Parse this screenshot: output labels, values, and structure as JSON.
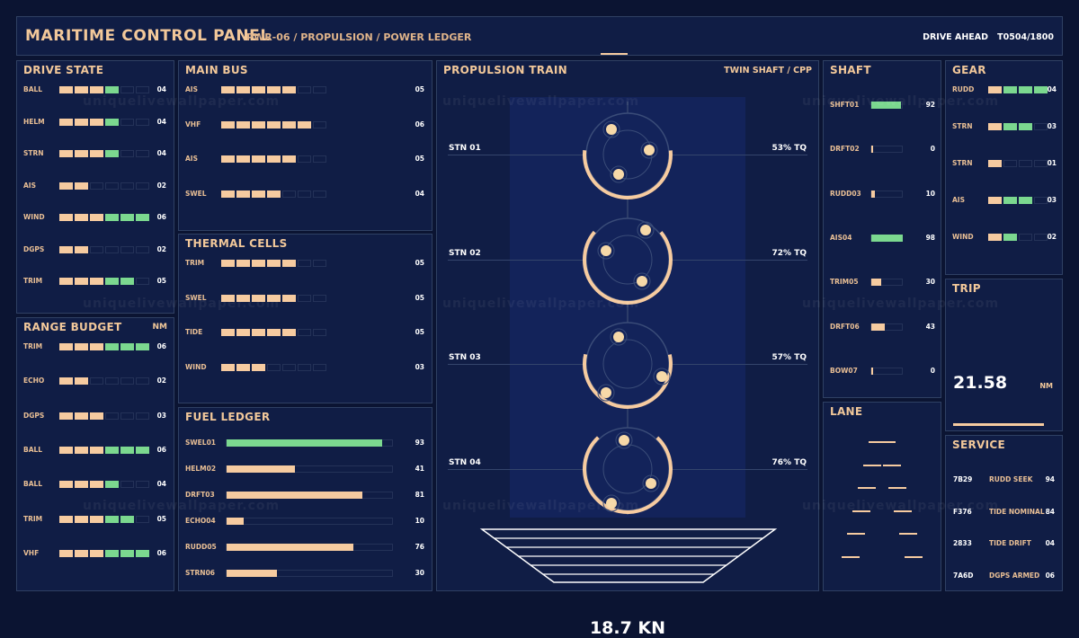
{
  "header": {
    "title": "MARITIME CONTROL PANEL",
    "subtitle": "PWR-06 / PROPULSION / POWER LEDGER",
    "status": "DRIVE AHEAD",
    "tick": "T0504/1800"
  },
  "watermark": "uniquelivewallpaper.com",
  "colors": {
    "background": "#0b1432",
    "panel": "#101d45",
    "amber": "#f6cba0",
    "green": "#7bd88f",
    "border": "#2f4063"
  },
  "drive_state": {
    "title": "DRIVE STATE",
    "rows": [
      {
        "label": "BALL",
        "value": "04",
        "level": 4,
        "green": 1
      },
      {
        "label": "HELM",
        "value": "04",
        "level": 4,
        "green": 1
      },
      {
        "label": "STRN",
        "value": "04",
        "level": 4,
        "green": 1
      },
      {
        "label": "AIS",
        "value": "02",
        "level": 2,
        "green": 0
      },
      {
        "label": "WIND",
        "value": "06",
        "level": 6,
        "green": 3
      },
      {
        "label": "DGPS",
        "value": "02",
        "level": 2,
        "green": 0
      },
      {
        "label": "TRIM",
        "value": "05",
        "level": 5,
        "green": 2
      }
    ]
  },
  "range_budget": {
    "title": "RANGE BUDGET",
    "unit": "NM",
    "rows": [
      {
        "label": "TRIM",
        "value": "06",
        "level": 6,
        "green": 3
      },
      {
        "label": "ECHO",
        "value": "02",
        "level": 2,
        "green": 0
      },
      {
        "label": "DGPS",
        "value": "03",
        "level": 3,
        "green": 0
      },
      {
        "label": "BALL",
        "value": "06",
        "level": 6,
        "green": 3
      },
      {
        "label": "BALL",
        "value": "04",
        "level": 4,
        "green": 1
      },
      {
        "label": "TRIM",
        "value": "05",
        "level": 5,
        "green": 2
      },
      {
        "label": "VHF",
        "value": "06",
        "level": 6,
        "green": 3
      }
    ]
  },
  "main_bus": {
    "title": "MAIN BUS",
    "rows": [
      {
        "label": "AIS",
        "value": "05",
        "level": 5
      },
      {
        "label": "VHF",
        "value": "06",
        "level": 6
      },
      {
        "label": "AIS",
        "value": "05",
        "level": 5
      },
      {
        "label": "SWEL",
        "value": "04",
        "level": 4
      }
    ]
  },
  "thermal_cells": {
    "title": "THERMAL CELLS",
    "rows": [
      {
        "label": "TRIM",
        "value": "05",
        "level": 5
      },
      {
        "label": "SWEL",
        "value": "05",
        "level": 5
      },
      {
        "label": "TIDE",
        "value": "05",
        "level": 5
      },
      {
        "label": "WIND",
        "value": "03",
        "level": 3
      }
    ]
  },
  "fuel_ledger": {
    "title": "FUEL LEDGER",
    "rows": [
      {
        "label": "SWEL01",
        "value": "93",
        "pct": 0.93,
        "color": "green"
      },
      {
        "label": "HELM02",
        "value": "41",
        "pct": 0.41,
        "color": "amber"
      },
      {
        "label": "DRFT03",
        "value": "81",
        "pct": 0.81,
        "color": "amber"
      },
      {
        "label": "ECHO04",
        "value": "10",
        "pct": 0.1,
        "color": "amber"
      },
      {
        "label": "RUDD05",
        "value": "76",
        "pct": 0.76,
        "color": "amber"
      },
      {
        "label": "STRN06",
        "value": "30",
        "pct": 0.3,
        "color": "amber"
      }
    ]
  },
  "propulsion": {
    "title": "PROPULSION TRAIN",
    "mode": "TWIN SHAFT / CPP",
    "stations": [
      {
        "label": "STN 01",
        "torque": "53% TQ",
        "arc": 0.53
      },
      {
        "label": "STN 02",
        "torque": "72% TQ",
        "arc": 0.72
      },
      {
        "label": "STN 03",
        "torque": "57% TQ",
        "arc": 0.57
      },
      {
        "label": "STN 04",
        "torque": "76% TQ",
        "arc": 0.76
      }
    ],
    "speed": "18.7 KN"
  },
  "shaft": {
    "title": "SHAFT",
    "rows": [
      {
        "label": "SHFT01",
        "value": "92",
        "pct": 0.92,
        "color": "green"
      },
      {
        "label": "DRFT02",
        "value": "0",
        "pct": 0.0,
        "color": "amber"
      },
      {
        "label": "RUDD03",
        "value": "10",
        "pct": 0.1,
        "color": "amber"
      },
      {
        "label": "AIS04",
        "value": "98",
        "pct": 0.98,
        "color": "green"
      },
      {
        "label": "TRIM05",
        "value": "30",
        "pct": 0.3,
        "color": "amber"
      },
      {
        "label": "DRFT06",
        "value": "43",
        "pct": 0.43,
        "color": "amber"
      },
      {
        "label": "BOW07",
        "value": "0",
        "pct": 0.0,
        "color": "amber"
      }
    ]
  },
  "gear": {
    "title": "GEAR",
    "rows": [
      {
        "label": "RUDD",
        "value": "04",
        "level": 4,
        "green": 3
      },
      {
        "label": "STRN",
        "value": "03",
        "level": 3,
        "green": 2
      },
      {
        "label": "STRN",
        "value": "01",
        "level": 1,
        "green": 0
      },
      {
        "label": "AIS",
        "value": "03",
        "level": 3,
        "green": 2
      },
      {
        "label": "WIND",
        "value": "02",
        "level": 2,
        "green": 1
      }
    ]
  },
  "lane": {
    "title": "LANE"
  },
  "trip": {
    "title": "TRIP",
    "value": "21.58",
    "unit": "NM"
  },
  "service": {
    "title": "SERVICE",
    "rows": [
      {
        "id": "7B29",
        "name": "RUDD SEEK",
        "value": "94"
      },
      {
        "id": "F376",
        "name": "TIDE NOMINAL",
        "value": "84"
      },
      {
        "id": "2833",
        "name": "TIDE DRIFT",
        "value": "04"
      },
      {
        "id": "7A6D",
        "name": "DGPS ARMED",
        "value": "06"
      }
    ]
  }
}
